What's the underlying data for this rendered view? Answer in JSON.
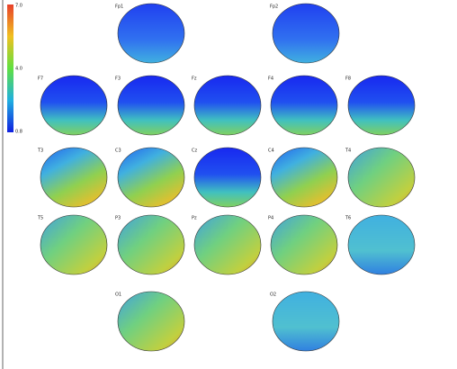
{
  "colorbar": {
    "labels": [
      "7.0",
      "4.0",
      "0.8"
    ]
  },
  "maps": [
    {
      "label": "Fp1"
    },
    {
      "label": "Fp2"
    },
    {
      "label": "F7"
    },
    {
      "label": "F3"
    },
    {
      "label": "Fz"
    },
    {
      "label": "F4"
    },
    {
      "label": "F8"
    },
    {
      "label": "T3"
    },
    {
      "label": "C3"
    },
    {
      "label": "Cz"
    },
    {
      "label": "C4"
    },
    {
      "label": "T4"
    },
    {
      "label": "T5"
    },
    {
      "label": "P3"
    },
    {
      "label": "Pz"
    },
    {
      "label": "P4"
    },
    {
      "label": "T6"
    },
    {
      "label": "O1"
    },
    {
      "label": "O2"
    }
  ]
}
